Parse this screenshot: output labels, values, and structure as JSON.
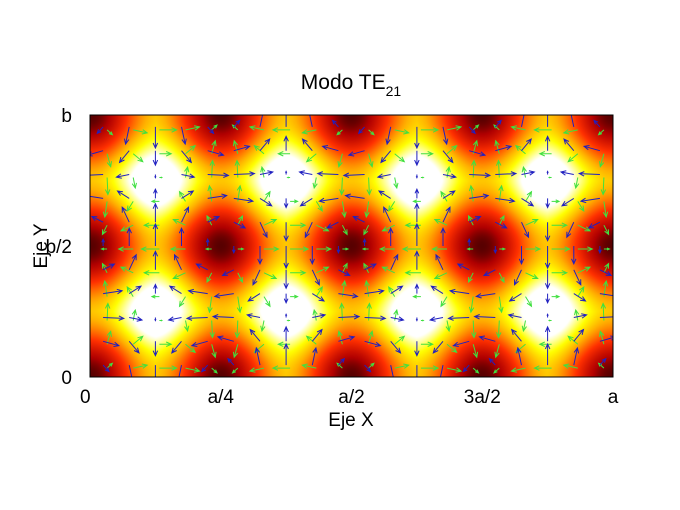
{
  "chart_data": {
    "type": "heatmap",
    "title": {
      "main": "Modo TE",
      "subscript": "21"
    },
    "xlabel": "Eje X",
    "ylabel": "Eje Y",
    "x_ticks": [
      "0",
      "a/4",
      "a/2",
      "3a/2",
      "a"
    ],
    "y_ticks": [
      "0",
      "b/2",
      "b"
    ],
    "xlim": [
      0,
      1
    ],
    "ylim": [
      0,
      1
    ],
    "mode": {
      "m": 2,
      "n": 1
    },
    "background_field": "intensity |E|, colormap black-red-yellow-white",
    "vector_fields": [
      {
        "name": "E",
        "color": "#2020c0"
      },
      {
        "name": "H",
        "color": "#40e040"
      }
    ],
    "colormap": [
      "#000000",
      "#b00000",
      "#ff3000",
      "#ffb000",
      "#ffff00",
      "#ffffff"
    ]
  }
}
